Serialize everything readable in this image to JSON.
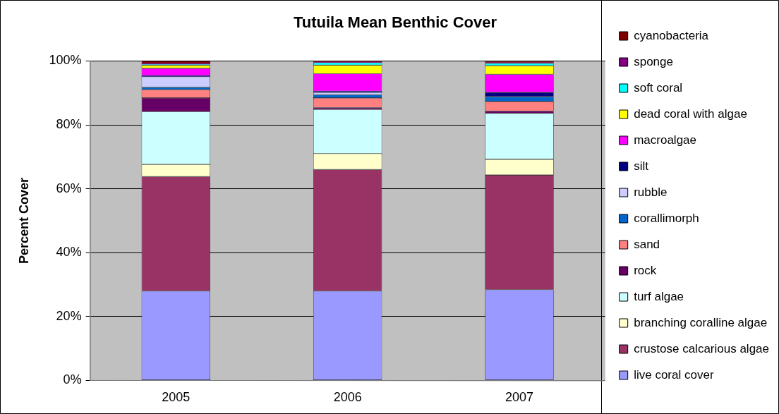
{
  "chart_data": {
    "type": "bar",
    "title": "Tutuila Mean Benthic Cover",
    "ylabel": "Percent Cover",
    "categories": [
      "2005",
      "2006",
      "2007"
    ],
    "stacked": true,
    "grid": "y",
    "legend": "right",
    "ylim": [
      0,
      100
    ],
    "yticks": [
      {
        "value": 0,
        "label": "0%"
      },
      {
        "value": 20,
        "label": "20%"
      },
      {
        "value": 40,
        "label": "40%"
      },
      {
        "value": 60,
        "label": "60%"
      },
      {
        "value": 80,
        "label": "80%"
      },
      {
        "value": 100,
        "label": "100%"
      }
    ],
    "series": [
      {
        "name": "live coral cover",
        "color": "#9999ff",
        "values": [
          28,
          28,
          28.4
        ]
      },
      {
        "name": "crustose calcarious algae",
        "color": "#993366",
        "values": [
          35.8,
          38,
          35.9
        ]
      },
      {
        "name": "branching coralline algae",
        "color": "#ffffcc",
        "values": [
          3.8,
          5,
          4.9
        ]
      },
      {
        "name": "turf algae",
        "color": "#ccffff",
        "values": [
          16.5,
          13.8,
          14.4
        ]
      },
      {
        "name": "rock",
        "color": "#660066",
        "values": [
          4.3,
          0.6,
          0.7
        ]
      },
      {
        "name": "sand",
        "color": "#ff8080",
        "values": [
          2.6,
          3,
          3
        ]
      },
      {
        "name": "corallimorph",
        "color": "#0066cc",
        "values": [
          0.8,
          1,
          1.5
        ]
      },
      {
        "name": "rubble",
        "color": "#ccccff",
        "values": [
          3.3,
          0.8,
          null
        ]
      },
      {
        "name": "silt",
        "color": "#000080",
        "values": [
          0.3,
          0.3,
          1.4
        ]
      },
      {
        "name": "macroalgae",
        "color": "#ff00ff",
        "values": [
          2.3,
          5.5,
          5.6
        ]
      },
      {
        "name": "dead coral with algae",
        "color": "#ffff00",
        "values": [
          1,
          2.7,
          2.7
        ]
      },
      {
        "name": "soft coral",
        "color": "#00ffff",
        "values": [
          0.2,
          0.8,
          0.8
        ]
      },
      {
        "name": "sponge",
        "color": "#800080",
        "values": [
          0.3,
          0.2,
          0.2
        ]
      },
      {
        "name": "cyanobacteria",
        "color": "#800000",
        "values": [
          0.8,
          0.3,
          0.3
        ]
      }
    ]
  }
}
